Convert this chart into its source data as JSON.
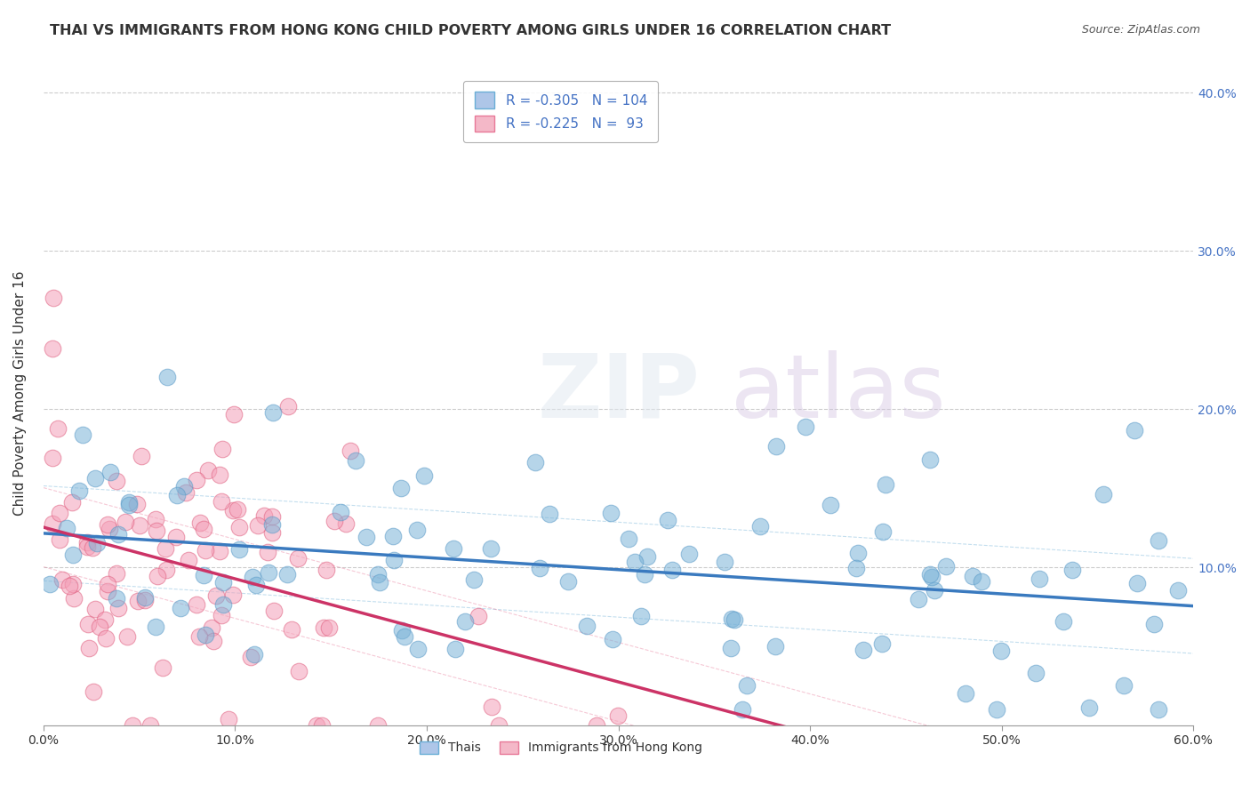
{
  "title": "THAI VS IMMIGRANTS FROM HONG KONG CHILD POVERTY AMONG GIRLS UNDER 16 CORRELATION CHART",
  "source": "Source: ZipAtlas.com",
  "xlabel": "",
  "ylabel": "Child Poverty Among Girls Under 16",
  "xlim": [
    0.0,
    0.6
  ],
  "ylim": [
    0.0,
    0.42
  ],
  "xtick_labels": [
    "0.0%",
    "10.0%",
    "20.0%",
    "30.0%",
    "40.0%",
    "50.0%",
    "60.0%"
  ],
  "xtick_vals": [
    0.0,
    0.1,
    0.2,
    0.3,
    0.4,
    0.5,
    0.6
  ],
  "ytick_labels": [
    "10.0%",
    "20.0%",
    "30.0%",
    "40.0%"
  ],
  "ytick_vals": [
    0.1,
    0.2,
    0.3,
    0.4
  ],
  "legend_entries": [
    {
      "label": "R = -0.305   N = 104",
      "color": "#aec6e8",
      "edgecolor": "#6aaed6"
    },
    {
      "label": "R = -0.225   N =  93",
      "color": "#f4b8c8",
      "edgecolor": "#e87898"
    }
  ],
  "scatter_thais": {
    "color": "#7ab3d8",
    "edgecolor": "#5b9bc8",
    "alpha": 0.55,
    "R": -0.305,
    "N": 104
  },
  "scatter_hk": {
    "color": "#f4a0b8",
    "edgecolor": "#e06080",
    "alpha": 0.55,
    "R": -0.225,
    "N": 93
  },
  "reg_line_thais": {
    "color": "#3a7abf",
    "linewidth": 2.5
  },
  "reg_line_hk": {
    "color": "#cc3366",
    "linewidth": 2.5
  },
  "watermark": "ZIPatlas",
  "background_color": "#ffffff",
  "grid_color": "#cccccc",
  "title_fontsize": 12,
  "axis_label_fontsize": 11
}
